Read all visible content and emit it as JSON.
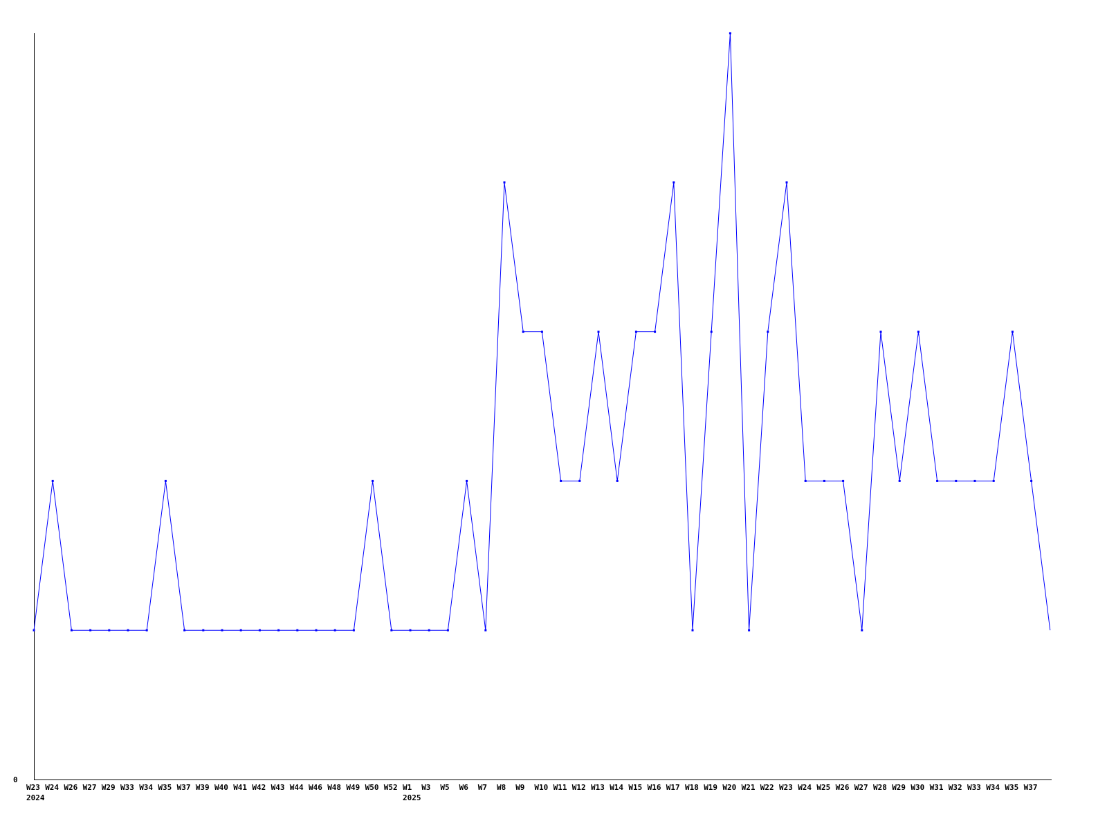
{
  "chart_data": {
    "type": "line",
    "title": "",
    "xlabel": "",
    "ylabel": "",
    "ylim": [
      0,
      5
    ],
    "y_tick_labels": [
      "0"
    ],
    "grid": false,
    "series_color": "#0000ff",
    "categories": [
      "W23",
      "W24",
      "W26",
      "W27",
      "W29",
      "W33",
      "W34",
      "W35",
      "W37",
      "W39",
      "W40",
      "W41",
      "W42",
      "W43",
      "W44",
      "W46",
      "W48",
      "W49",
      "W50",
      "W52",
      "W1",
      "W3",
      "W5",
      "W6",
      "W7",
      "W8",
      "W9",
      "W10",
      "W11",
      "W12",
      "W13",
      "W14",
      "W15",
      "W16",
      "W17",
      "W18",
      "W19",
      "W20",
      "W21",
      "W22",
      "W23",
      "W24",
      "W25",
      "W26",
      "W27",
      "W28",
      "W29",
      "W30",
      "W31",
      "W32",
      "W33",
      "W34",
      "W35",
      "W37",
      ""
    ],
    "year_labels": [
      {
        "index": 0,
        "label": "2024"
      },
      {
        "index": 20,
        "label": "2025"
      }
    ],
    "values": [
      1,
      2,
      1,
      1,
      1,
      1,
      1,
      2,
      1,
      1,
      1,
      1,
      1,
      1,
      1,
      1,
      1,
      1,
      2,
      1,
      1,
      1,
      1,
      2,
      1,
      4,
      3,
      3,
      2,
      2,
      3,
      2,
      3,
      3,
      4,
      1,
      3,
      5,
      1,
      3,
      4,
      2,
      2,
      2,
      1,
      3,
      2,
      3,
      2,
      2,
      2,
      2,
      3,
      2,
      1
    ]
  }
}
